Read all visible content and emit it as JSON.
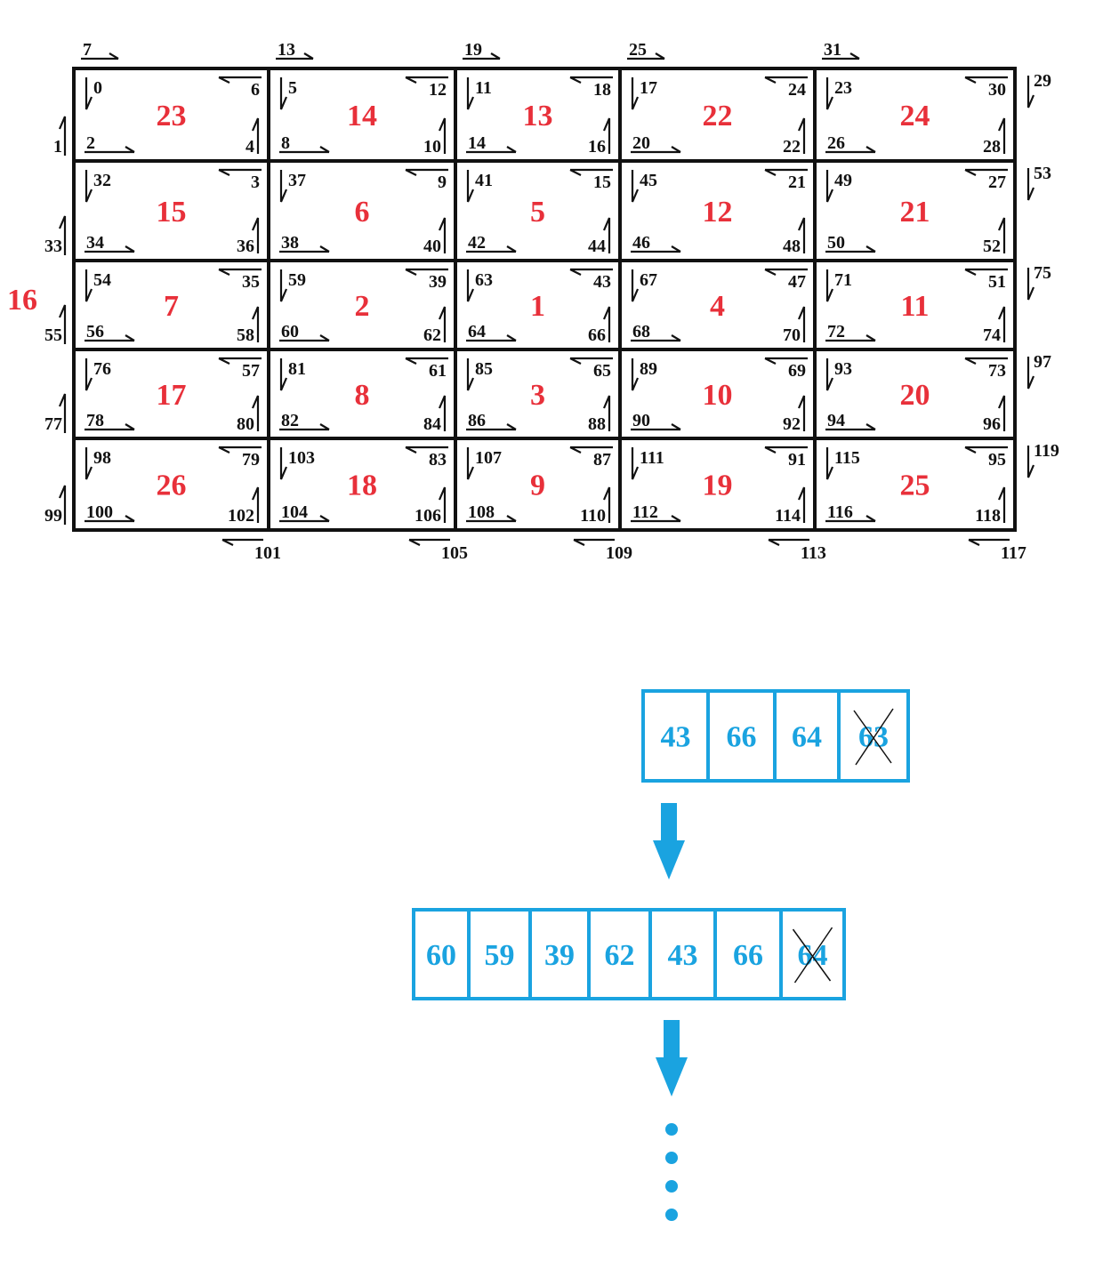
{
  "grid": {
    "cells": [
      [
        {
          "label": "23",
          "tl": "0",
          "tr": "6",
          "bl": "2",
          "br": "4"
        },
        {
          "label": "14",
          "tl": "5",
          "tr": "12",
          "bl": "8",
          "br": "10"
        },
        {
          "label": "13",
          "tl": "11",
          "tr": "18",
          "bl": "14",
          "br": "16"
        },
        {
          "label": "22",
          "tl": "17",
          "tr": "24",
          "bl": "20",
          "br": "22"
        },
        {
          "label": "24",
          "tl": "23",
          "tr": "30",
          "bl": "26",
          "br": "28"
        }
      ],
      [
        {
          "label": "15",
          "tl": "32",
          "tr": "3",
          "bl": "34",
          "br": "36"
        },
        {
          "label": "6",
          "tl": "37",
          "tr": "9",
          "bl": "38",
          "br": "40"
        },
        {
          "label": "5",
          "tl": "41",
          "tr": "15",
          "bl": "42",
          "br": "44"
        },
        {
          "label": "12",
          "tl": "45",
          "tr": "21",
          "bl": "46",
          "br": "48"
        },
        {
          "label": "21",
          "tl": "49",
          "tr": "27",
          "bl": "50",
          "br": "52"
        }
      ],
      [
        {
          "label": "7",
          "tl": "54",
          "tr": "35",
          "bl": "56",
          "br": "58"
        },
        {
          "label": "2",
          "tl": "59",
          "tr": "39",
          "bl": "60",
          "br": "62"
        },
        {
          "label": "1",
          "tl": "63",
          "tr": "43",
          "bl": "64",
          "br": "66"
        },
        {
          "label": "4",
          "tl": "67",
          "tr": "47",
          "bl": "68",
          "br": "70"
        },
        {
          "label": "11",
          "tl": "71",
          "tr": "51",
          "bl": "72",
          "br": "74"
        }
      ],
      [
        {
          "label": "17",
          "tl": "76",
          "tr": "57",
          "bl": "78",
          "br": "80"
        },
        {
          "label": "8",
          "tl": "81",
          "tr": "61",
          "bl": "82",
          "br": "84"
        },
        {
          "label": "3",
          "tl": "85",
          "tr": "65",
          "bl": "86",
          "br": "88"
        },
        {
          "label": "10",
          "tl": "89",
          "tr": "69",
          "bl": "90",
          "br": "92"
        },
        {
          "label": "20",
          "tl": "93",
          "tr": "73",
          "bl": "94",
          "br": "96"
        }
      ],
      [
        {
          "label": "26",
          "tl": "98",
          "tr": "79",
          "bl": "100",
          "br": "102"
        },
        {
          "label": "18",
          "tl": "103",
          "tr": "83",
          "bl": "104",
          "br": "106"
        },
        {
          "label": "9",
          "tl": "107",
          "tr": "87",
          "bl": "108",
          "br": "110"
        },
        {
          "label": "19",
          "tl": "111",
          "tr": "91",
          "bl": "112",
          "br": "114"
        },
        {
          "label": "25",
          "tl": "115",
          "tr": "95",
          "bl": "116",
          "br": "118"
        }
      ]
    ],
    "top_edges": [
      "7",
      "13",
      "19",
      "25",
      "31"
    ],
    "bottom_edges": [
      "101",
      "105",
      "109",
      "113",
      "117"
    ],
    "left_edges": [
      "1",
      "33",
      "55",
      "77",
      "99"
    ],
    "right_edges": [
      "29",
      "53",
      "75",
      "97",
      "119"
    ],
    "outer_label": "16"
  },
  "queues": [
    {
      "items": [
        {
          "v": "43",
          "x": false
        },
        {
          "v": "66",
          "x": false
        },
        {
          "v": "64",
          "x": false
        },
        {
          "v": "63",
          "x": true
        }
      ]
    },
    {
      "items": [
        {
          "v": "60",
          "x": false
        },
        {
          "v": "59",
          "x": false
        },
        {
          "v": "39",
          "x": false
        },
        {
          "v": "62",
          "x": false
        },
        {
          "v": "43",
          "x": false
        },
        {
          "v": "66",
          "x": false
        },
        {
          "v": "64",
          "x": true
        }
      ]
    }
  ],
  "ellipsis_dots": 4,
  "colors": {
    "line": "#111111",
    "cell_label": "#e8303a",
    "queue": "#1aa3e0",
    "queue_text": "#1aa3e0"
  }
}
